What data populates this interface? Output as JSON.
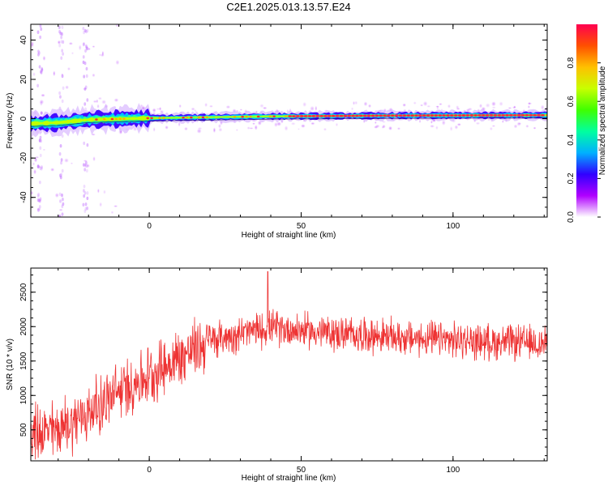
{
  "title": "C2E1.2025.013.13.57.E24",
  "chart_data": [
    {
      "type": "heatmap",
      "xlabel": "Height of straight line (km)",
      "ylabel": "Frequency (Hz)",
      "xlim": [
        -39,
        131
      ],
      "ylim": [
        -50,
        48
      ],
      "x_ticks": [
        0,
        50,
        100
      ],
      "y_ticks": [
        -40,
        -20,
        0,
        20,
        40
      ],
      "grid": false,
      "band_center_hz": [
        {
          "x": -39,
          "y": -2.5
        },
        {
          "x": -30,
          "y": -2
        },
        {
          "x": -20,
          "y": -0.5
        },
        {
          "x": 0,
          "y": 0.3
        },
        {
          "x": 40,
          "y": 1.2
        },
        {
          "x": 80,
          "y": 1.6
        },
        {
          "x": 131,
          "y": 1.8
        }
      ],
      "colorbar": {
        "label": "Normalized spectral amplitude",
        "range": [
          0,
          1
        ],
        "ticks": [
          "0.0",
          "0.2",
          "0.4",
          "0.6",
          "0.8"
        ],
        "colors": [
          "#ffffff",
          "#b000ff",
          "#3000ff",
          "#00b0ff",
          "#00ffa0",
          "#40ff00",
          "#c8ff00",
          "#ffc000",
          "#ff5000",
          "#ff0050"
        ]
      }
    },
    {
      "type": "line",
      "xlabel": "Height of straight line (km)",
      "ylabel": "SNR (10 * v/v)",
      "xlim": [
        -39,
        131
      ],
      "ylim": [
        50,
        2850
      ],
      "x_ticks": [
        0,
        50,
        100
      ],
      "y_ticks": [
        500,
        1000,
        1500,
        2000,
        2500
      ],
      "grid": false,
      "series": [
        {
          "color": "#ee3333",
          "trend": [
            {
              "x": -39,
              "y": 450
            },
            {
              "x": -30,
              "y": 500
            },
            {
              "x": -20,
              "y": 750
            },
            {
              "x": -10,
              "y": 1050
            },
            {
              "x": 0,
              "y": 1300
            },
            {
              "x": 10,
              "y": 1550
            },
            {
              "x": 20,
              "y": 1800
            },
            {
              "x": 30,
              "y": 1900
            },
            {
              "x": 40,
              "y": 1980
            },
            {
              "x": 50,
              "y": 1950
            },
            {
              "x": 60,
              "y": 1900
            },
            {
              "x": 70,
              "y": 1880
            },
            {
              "x": 80,
              "y": 1850
            },
            {
              "x": 90,
              "y": 1820
            },
            {
              "x": 100,
              "y": 1800
            },
            {
              "x": 110,
              "y": 1780
            },
            {
              "x": 120,
              "y": 1770
            },
            {
              "x": 131,
              "y": 1750
            }
          ],
          "peak": {
            "x": 39,
            "y": 2800
          }
        }
      ]
    }
  ]
}
